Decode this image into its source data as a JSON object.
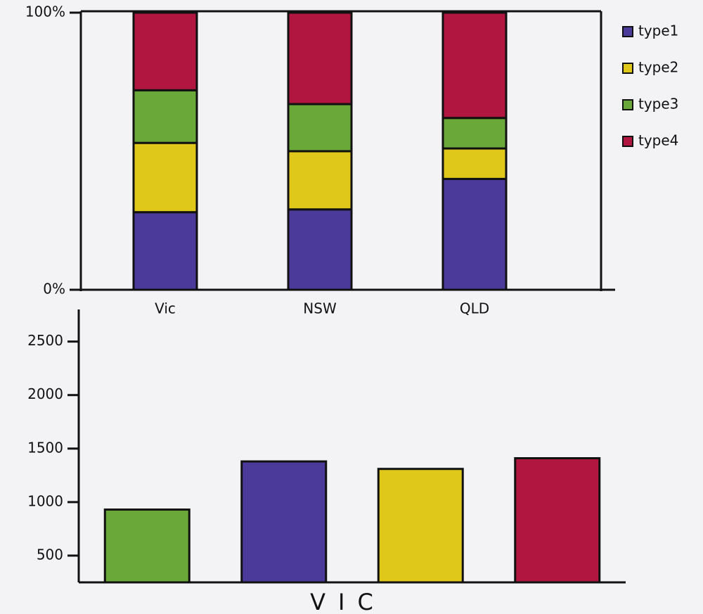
{
  "chart_data": [
    {
      "type": "stacked_bar",
      "categories": [
        "Vic",
        "NSW",
        "QLD"
      ],
      "series": [
        {
          "name": "type1",
          "color": "#4b3a9a",
          "values": [
            28,
            29,
            40
          ]
        },
        {
          "name": "type2",
          "color": "#e0c81a",
          "values": [
            25,
            21,
            11
          ]
        },
        {
          "name": "type3",
          "color": "#6aa83a",
          "values": [
            19,
            17,
            11
          ]
        },
        {
          "name": "type4",
          "color": "#b0163f",
          "values": [
            28,
            33,
            38
          ]
        }
      ],
      "ylim": [
        0,
        100
      ],
      "yticks": [
        {
          "value": 0,
          "label": "0%"
        },
        {
          "value": 100,
          "label": "100%"
        }
      ],
      "legend": "right"
    },
    {
      "type": "bar",
      "x_label": "VIC",
      "categories": [
        null,
        null,
        null,
        null
      ],
      "values": [
        930,
        1380,
        1310,
        1410
      ],
      "colors": [
        "#6aa83a",
        "#4b3a9a",
        "#e0c81a",
        "#b0163f"
      ],
      "ylim": [
        250,
        2800
      ],
      "yticks": [
        500,
        1000,
        1500,
        2000,
        2500
      ]
    }
  ]
}
